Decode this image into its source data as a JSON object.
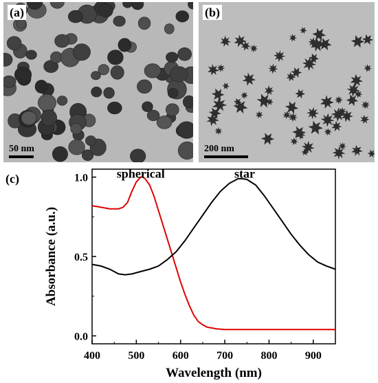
{
  "panels": {
    "a": {
      "label": "(a)",
      "scalebar": "50 nm"
    },
    "b": {
      "label": "(b)",
      "scalebar": "200 nm"
    },
    "c": {
      "label": "(c)"
    }
  },
  "colors": {
    "tem_background": "#b8b8b8",
    "particle": "#3a3a3a",
    "spherical": "#e00000",
    "star": "#000000"
  },
  "chart_data": {
    "type": "line",
    "xlabel": "Wavelength (nm)",
    "ylabel": "Absorbance (a.u.)",
    "xlim": [
      400,
      950
    ],
    "ylim": [
      -0.05,
      1.05
    ],
    "xticks": [
      400,
      500,
      600,
      700,
      800,
      900
    ],
    "yticks": [
      0.0,
      0.5,
      1.0
    ],
    "ytick_labels": [
      "0.0",
      "0.5",
      "1.0"
    ],
    "grid": false,
    "series": [
      {
        "name": "spherical",
        "color": "#e00000",
        "x": [
          400,
          420,
          440,
          460,
          470,
          480,
          490,
          500,
          510,
          515,
          520,
          530,
          540,
          550,
          560,
          570,
          580,
          590,
          600,
          610,
          620,
          630,
          640,
          650,
          660,
          670,
          680,
          700,
          750,
          800,
          850,
          900,
          950
        ],
        "y": [
          0.82,
          0.81,
          0.8,
          0.8,
          0.81,
          0.84,
          0.91,
          0.97,
          1.0,
          1.0,
          0.99,
          0.95,
          0.88,
          0.79,
          0.7,
          0.61,
          0.52,
          0.43,
          0.34,
          0.26,
          0.19,
          0.13,
          0.09,
          0.07,
          0.055,
          0.05,
          0.045,
          0.04,
          0.04,
          0.04,
          0.04,
          0.04,
          0.04
        ]
      },
      {
        "name": "star",
        "color": "#000000",
        "x": [
          400,
          420,
          440,
          460,
          475,
          490,
          510,
          530,
          550,
          570,
          590,
          610,
          630,
          650,
          670,
          690,
          710,
          730,
          740,
          750,
          770,
          790,
          810,
          830,
          850,
          870,
          890,
          910,
          930,
          950
        ],
        "y": [
          0.45,
          0.44,
          0.42,
          0.39,
          0.385,
          0.39,
          0.405,
          0.42,
          0.44,
          0.48,
          0.53,
          0.6,
          0.68,
          0.76,
          0.84,
          0.91,
          0.96,
          0.99,
          0.99,
          0.985,
          0.95,
          0.88,
          0.8,
          0.72,
          0.64,
          0.57,
          0.51,
          0.465,
          0.44,
          0.42
        ]
      }
    ],
    "annotations": [
      {
        "text": "spherical",
        "x": 510,
        "y": 1.03
      },
      {
        "text": "star",
        "x": 745,
        "y": 1.03
      }
    ]
  }
}
